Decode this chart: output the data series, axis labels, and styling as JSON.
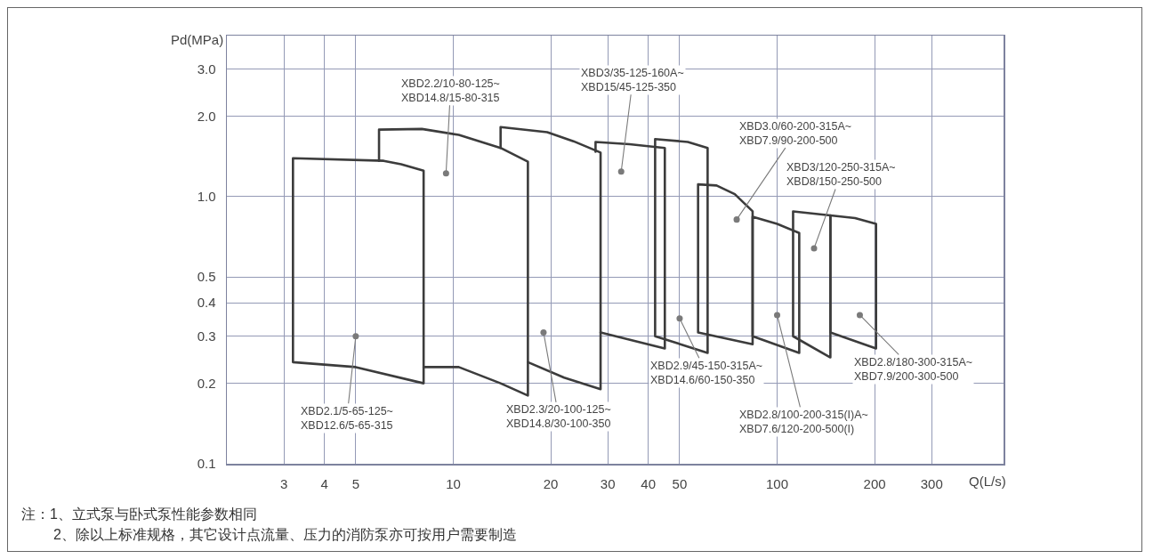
{
  "chart_data": {
    "type": "line",
    "xlabel": "Q(L/s)",
    "ylabel": "Pd(MPa)",
    "log": "xy",
    "grid": true,
    "line_style": "solid",
    "xlim": [
      2,
      500
    ],
    "xticks": [
      3,
      4,
      5,
      10,
      20,
      30,
      40,
      50,
      100,
      200,
      300
    ],
    "ylim": [
      0.1,
      4
    ],
    "yticks": [
      0.1,
      0.2,
      0.3,
      0.4,
      0.5,
      {
        "value": 1,
        "label": "1.0"
      },
      {
        "value": 2,
        "label": "2.0"
      },
      {
        "value": 3,
        "label": "3.0"
      }
    ],
    "series": [
      {
        "color": "#3c3c3c",
        "x": [
          3.2,
          3.2,
          6.1,
          6.9,
          8.1,
          8.1,
          5,
          3.2,
          3.2
        ],
        "values": [
          0.24,
          1.39,
          1.36,
          1.32,
          1.25,
          0.2,
          0.23,
          0.24,
          1.39
        ]
      },
      {
        "color": "#3c3c3c",
        "x": [
          5.9,
          5.9,
          8,
          10.4,
          14,
          17,
          17,
          14,
          10.4,
          8.1
        ],
        "values": [
          1.36,
          1.78,
          1.79,
          1.7,
          1.52,
          1.35,
          0.18,
          0.2,
          0.23,
          0.23
        ]
      },
      {
        "color": "#3c3c3c",
        "x": [
          14,
          14,
          19.5,
          23.5,
          28.5,
          28.5,
          22,
          17
        ],
        "values": [
          1.52,
          1.82,
          1.74,
          1.61,
          1.46,
          0.19,
          0.21,
          0.24
        ]
      },
      {
        "color": "#3c3c3c",
        "x": [
          27.5,
          27.5,
          35,
          45,
          45,
          28.5
        ],
        "values": [
          1.47,
          1.6,
          1.57,
          1.52,
          0.27,
          0.31
        ]
      },
      {
        "color": "#3c3c3c",
        "x": [
          42,
          42,
          53,
          61,
          61,
          42,
          42
        ],
        "values": [
          0.3,
          1.64,
          1.6,
          1.52,
          0.26,
          0.3,
          1.64
        ]
      },
      {
        "color": "#3c3c3c",
        "x": [
          57,
          57,
          65,
          74,
          84,
          84,
          57,
          57
        ],
        "values": [
          0.31,
          1.11,
          1.1,
          1.02,
          0.88,
          0.28,
          0.31,
          1.11
        ]
      },
      {
        "color": "#3c3c3c",
        "x": [
          84,
          84,
          100,
          117,
          117,
          84,
          84
        ],
        "values": [
          0.3,
          0.84,
          0.79,
          0.73,
          0.26,
          0.3,
          0.84
        ]
      },
      {
        "color": "#3c3c3c",
        "x": [
          112,
          112,
          146,
          146,
          112,
          112
        ],
        "values": [
          0.3,
          0.88,
          0.85,
          0.25,
          0.3,
          0.88
        ]
      },
      {
        "color": "#3c3c3c",
        "x": [
          146,
          146,
          174,
          202,
          202,
          146,
          146
        ],
        "values": [
          0.31,
          0.85,
          0.83,
          0.79,
          0.27,
          0.31,
          0.85
        ]
      }
    ],
    "annotations": [
      {
        "text": "XBD2.1/5-65-125~\nXBD12.6/5-65-315",
        "x": 5,
        "y": 0.3
      },
      {
        "text": "XBD2.2/10-80-125~\nXBD14.8/15-80-315",
        "x": 9.5,
        "y": 1.22
      },
      {
        "text": "XBD2.3/20-100-125~\nXBD14.8/30-100-350",
        "x": 19,
        "y": 0.31
      },
      {
        "text": "XBD3/35-125-160A~\nXBD15/45-125-350",
        "x": 33,
        "y": 1.24
      },
      {
        "text": "XBD2.9/45-150-315A~\nXBD14.6/60-150-350",
        "x": 50,
        "y": 0.35
      },
      {
        "text": "XBD3.0/60-200-315A~\nXBD7.9/90-200-500",
        "x": 75,
        "y": 0.82
      },
      {
        "text": "XBD2.8/100-200-315(I)A~\nXBD7.6/120-200-500(I)",
        "x": 100,
        "y": 0.36
      },
      {
        "text": "XBD3/120-250-315A~\nXBD8/150-250-500",
        "x": 130,
        "y": 0.64
      },
      {
        "text": "XBD2.8/180-300-315A~\nXBD7.9/200-300-500",
        "x": 180,
        "y": 0.36
      },
      "注：1、立式泵与卧式泵性能参数相同",
      "2、除以上标准规格，其它设计点流量、压力的消防泵亦可按用户需要制造"
    ]
  }
}
